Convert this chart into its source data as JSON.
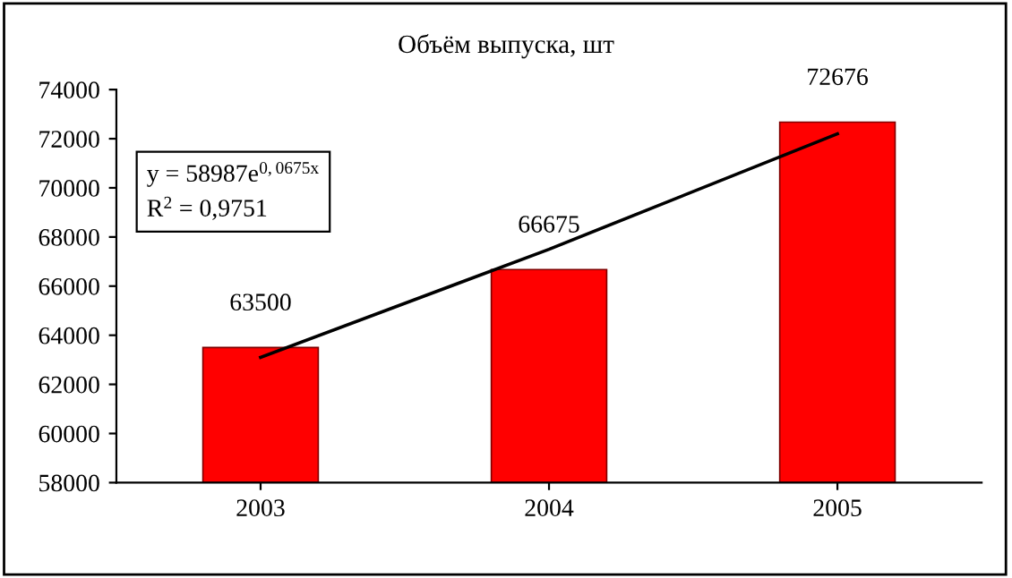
{
  "chart_data": {
    "type": "bar",
    "title": "Объём выпуска, шт",
    "categories": [
      "2003",
      "2004",
      "2005"
    ],
    "series": [
      {
        "color": "#ff0000",
        "values": [
          63500,
          66675,
          72676
        ],
        "value_labels": [
          "63500",
          "66675",
          "72676"
        ]
      },
      {
        "type": "line",
        "color": "#000000",
        "values": [
          63100,
          67500,
          72200
        ]
      }
    ],
    "annotations": [
      "y = 58987e$^{0,0675x}$",
      "R$^{2}$ = 0,9751"
    ],
    "ylim": [
      58000,
      74000
    ],
    "yticks": [
      58000,
      60000,
      62000,
      64000,
      66000,
      68000,
      70000,
      72000,
      74000
    ],
    "grid": false,
    "legend": false,
    "line_style": "solid",
    "marker": "none"
  }
}
